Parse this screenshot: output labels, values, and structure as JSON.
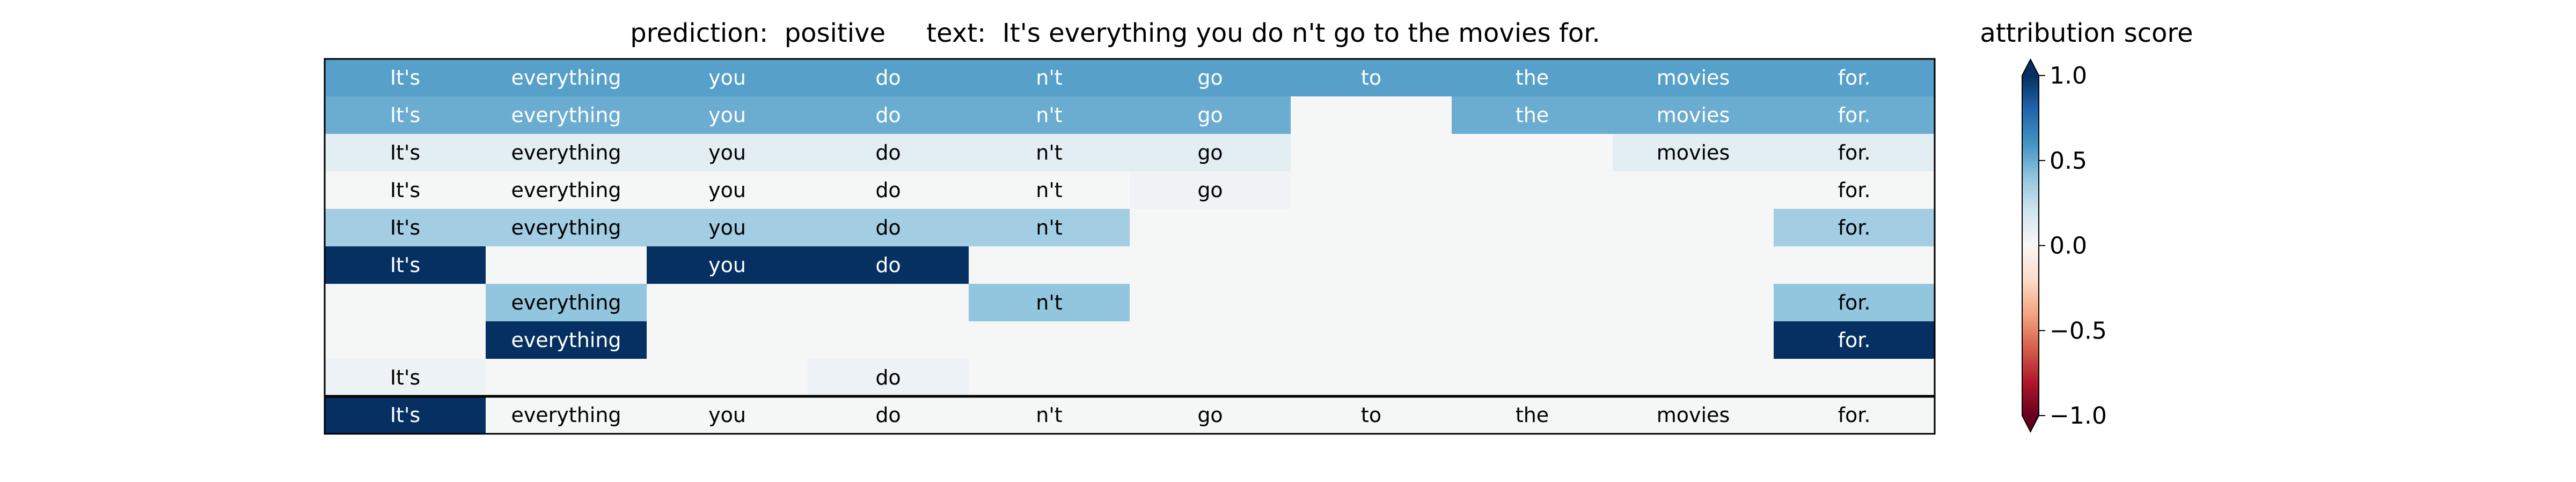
{
  "chart_data": {
    "type": "heatmap",
    "title": "prediction:  positive     text:  It's everything you do n't go to the movies for.",
    "colorbar": {
      "label": "attribution score",
      "range": [
        -1.0,
        1.0
      ],
      "ticks": [
        1.0,
        0.5,
        0.0,
        -0.5,
        -1.0
      ],
      "tick_labels": [
        "1.0",
        "0.5",
        "0.0",
        "−0.5",
        "−1.0"
      ],
      "extend": "both",
      "colormap": "RdBu"
    },
    "tokens": [
      "It's",
      "everything",
      "you",
      "do",
      "n't",
      "go",
      "to",
      "the",
      "movies",
      "for."
    ],
    "rows": [
      {
        "cells": [
          {
            "text": "It's",
            "value": 0.55
          },
          {
            "text": "everything",
            "value": 0.55
          },
          {
            "text": "you",
            "value": 0.55
          },
          {
            "text": "do",
            "value": 0.55
          },
          {
            "text": "n't",
            "value": 0.55
          },
          {
            "text": "go",
            "value": 0.55
          },
          {
            "text": "to",
            "value": 0.55
          },
          {
            "text": "the",
            "value": 0.55
          },
          {
            "text": "movies",
            "value": 0.55
          },
          {
            "text": "for.",
            "value": 0.55
          }
        ]
      },
      {
        "cells": [
          {
            "text": "It's",
            "value": 0.5
          },
          {
            "text": "everything",
            "value": 0.5
          },
          {
            "text": "you",
            "value": 0.5
          },
          {
            "text": "do",
            "value": 0.5
          },
          {
            "text": "n't",
            "value": 0.5
          },
          {
            "text": "go",
            "value": 0.5
          },
          {
            "text": "",
            "value": 0.0
          },
          {
            "text": "the",
            "value": 0.5
          },
          {
            "text": "movies",
            "value": 0.5
          },
          {
            "text": "for.",
            "value": 0.5
          }
        ]
      },
      {
        "cells": [
          {
            "text": "It's",
            "value": 0.1
          },
          {
            "text": "everything",
            "value": 0.1
          },
          {
            "text": "you",
            "value": 0.1
          },
          {
            "text": "do",
            "value": 0.1
          },
          {
            "text": "n't",
            "value": 0.1
          },
          {
            "text": "go",
            "value": 0.1
          },
          {
            "text": "",
            "value": 0.0
          },
          {
            "text": "",
            "value": 0.0
          },
          {
            "text": "movies",
            "value": 0.1
          },
          {
            "text": "for.",
            "value": 0.1
          }
        ]
      },
      {
        "cells": [
          {
            "text": "It's",
            "value": 0.0
          },
          {
            "text": "everything",
            "value": 0.0
          },
          {
            "text": "you",
            "value": 0.0
          },
          {
            "text": "do",
            "value": 0.0
          },
          {
            "text": "n't",
            "value": 0.0
          },
          {
            "text": "go",
            "value": 0.03
          },
          {
            "text": "",
            "value": 0.0
          },
          {
            "text": "",
            "value": 0.0
          },
          {
            "text": "",
            "value": 0.0
          },
          {
            "text": "for.",
            "value": 0.0
          }
        ]
      },
      {
        "cells": [
          {
            "text": "It's",
            "value": 0.35
          },
          {
            "text": "everything",
            "value": 0.35
          },
          {
            "text": "you",
            "value": 0.35
          },
          {
            "text": "do",
            "value": 0.35
          },
          {
            "text": "n't",
            "value": 0.35
          },
          {
            "text": "",
            "value": 0.0
          },
          {
            "text": "",
            "value": 0.0
          },
          {
            "text": "",
            "value": 0.0
          },
          {
            "text": "",
            "value": 0.0
          },
          {
            "text": "for.",
            "value": 0.35
          }
        ]
      },
      {
        "cells": [
          {
            "text": "It's",
            "value": 1.0
          },
          {
            "text": "",
            "value": 0.0
          },
          {
            "text": "you",
            "value": 1.0
          },
          {
            "text": "do",
            "value": 1.0
          },
          {
            "text": "",
            "value": 0.0
          },
          {
            "text": "",
            "value": 0.0
          },
          {
            "text": "",
            "value": 0.0
          },
          {
            "text": "",
            "value": 0.0
          },
          {
            "text": "",
            "value": 0.0
          },
          {
            "text": "",
            "value": 0.0
          }
        ]
      },
      {
        "cells": [
          {
            "text": "",
            "value": 0.0
          },
          {
            "text": "everything",
            "value": 0.4
          },
          {
            "text": "",
            "value": 0.0
          },
          {
            "text": "",
            "value": 0.0
          },
          {
            "text": "n't",
            "value": 0.4
          },
          {
            "text": "",
            "value": 0.0
          },
          {
            "text": "",
            "value": 0.0
          },
          {
            "text": "",
            "value": 0.0
          },
          {
            "text": "",
            "value": 0.0
          },
          {
            "text": "for.",
            "value": 0.4
          }
        ]
      },
      {
        "cells": [
          {
            "text": "",
            "value": 0.0
          },
          {
            "text": "everything",
            "value": 1.0
          },
          {
            "text": "",
            "value": 0.0
          },
          {
            "text": "",
            "value": 0.0
          },
          {
            "text": "",
            "value": 0.0
          },
          {
            "text": "",
            "value": 0.0
          },
          {
            "text": "",
            "value": 0.0
          },
          {
            "text": "",
            "value": 0.0
          },
          {
            "text": "",
            "value": 0.0
          },
          {
            "text": "for.",
            "value": 1.0
          }
        ]
      },
      {
        "cells": [
          {
            "text": "It's",
            "value": 0.05
          },
          {
            "text": "",
            "value": 0.0
          },
          {
            "text": "",
            "value": 0.0
          },
          {
            "text": "do",
            "value": 0.05
          },
          {
            "text": "",
            "value": 0.0
          },
          {
            "text": "",
            "value": 0.0
          },
          {
            "text": "",
            "value": 0.0
          },
          {
            "text": "",
            "value": 0.0
          },
          {
            "text": "",
            "value": 0.0
          },
          {
            "text": "",
            "value": 0.0
          }
        ]
      },
      {
        "separated": true,
        "cells": [
          {
            "text": "It's",
            "value": 1.0
          },
          {
            "text": "everything",
            "value": 0.0
          },
          {
            "text": "you",
            "value": 0.0
          },
          {
            "text": "do",
            "value": 0.0
          },
          {
            "text": "n't",
            "value": 0.0
          },
          {
            "text": "go",
            "value": 0.0
          },
          {
            "text": "to",
            "value": 0.0
          },
          {
            "text": "the",
            "value": 0.0
          },
          {
            "text": "movies",
            "value": 0.0
          },
          {
            "text": "for.",
            "value": 0.0
          }
        ]
      }
    ]
  }
}
